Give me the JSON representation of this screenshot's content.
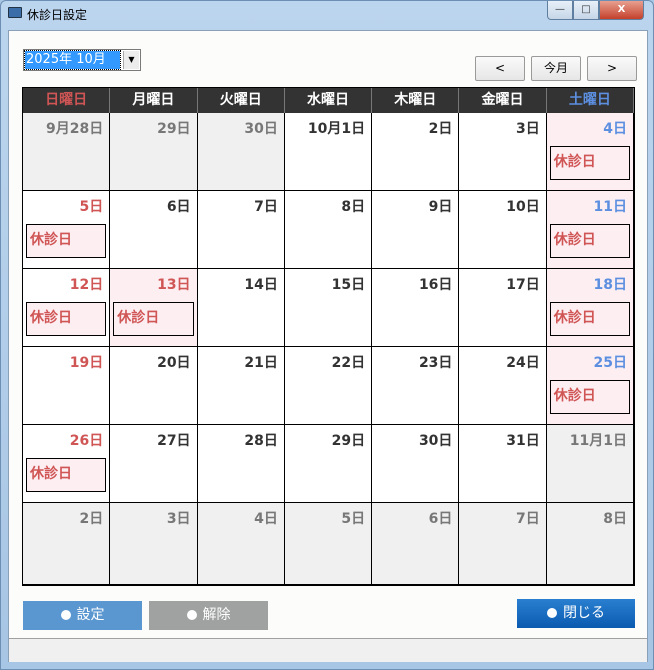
{
  "window": {
    "title": "休診日設定",
    "minimize": "—",
    "maximize": "□",
    "close": "X"
  },
  "month_select": {
    "value": "2025年 10月"
  },
  "nav": {
    "prev": "<",
    "today": "今月",
    "next": ">"
  },
  "weekdays": [
    "日曜日",
    "月曜日",
    "火曜日",
    "水曜日",
    "木曜日",
    "金曜日",
    "土曜日"
  ],
  "colors": {
    "sunday": "#d05555",
    "saturday": "#5c8fe0",
    "holiday_bg": "#fdeef2",
    "header_bg": "#333333"
  },
  "holiday_label": "休診日",
  "weeks": [
    [
      {
        "day": "9月28日",
        "other": true
      },
      {
        "day": "29日",
        "other": true
      },
      {
        "day": "30日",
        "other": true
      },
      {
        "day": "10月1日"
      },
      {
        "day": "2日"
      },
      {
        "day": "3日"
      },
      {
        "day": "4日",
        "holiday": true
      }
    ],
    [
      {
        "day": "5日",
        "holiday": true,
        "white": true
      },
      {
        "day": "6日"
      },
      {
        "day": "7日"
      },
      {
        "day": "8日"
      },
      {
        "day": "9日"
      },
      {
        "day": "10日"
      },
      {
        "day": "11日",
        "holiday": true
      }
    ],
    [
      {
        "day": "12日",
        "holiday": true,
        "white": true
      },
      {
        "day": "13日",
        "holiday": true
      },
      {
        "day": "14日"
      },
      {
        "day": "15日"
      },
      {
        "day": "16日"
      },
      {
        "day": "17日"
      },
      {
        "day": "18日",
        "holiday": true
      }
    ],
    [
      {
        "day": "19日"
      },
      {
        "day": "20日"
      },
      {
        "day": "21日"
      },
      {
        "day": "22日"
      },
      {
        "day": "23日"
      },
      {
        "day": "24日"
      },
      {
        "day": "25日",
        "holiday": true
      }
    ],
    [
      {
        "day": "26日",
        "holiday": true,
        "white": true
      },
      {
        "day": "27日"
      },
      {
        "day": "28日"
      },
      {
        "day": "29日"
      },
      {
        "day": "30日"
      },
      {
        "day": "31日"
      },
      {
        "day": "11月1日",
        "other": true
      }
    ],
    [
      {
        "day": "2日",
        "other": true
      },
      {
        "day": "3日",
        "other": true
      },
      {
        "day": "4日",
        "other": true
      },
      {
        "day": "5日",
        "other": true
      },
      {
        "day": "6日",
        "other": true
      },
      {
        "day": "7日",
        "other": true
      },
      {
        "day": "8日",
        "other": true
      }
    ]
  ],
  "buttons": {
    "set": "設定",
    "clear": "解除",
    "close": "閉じる"
  }
}
